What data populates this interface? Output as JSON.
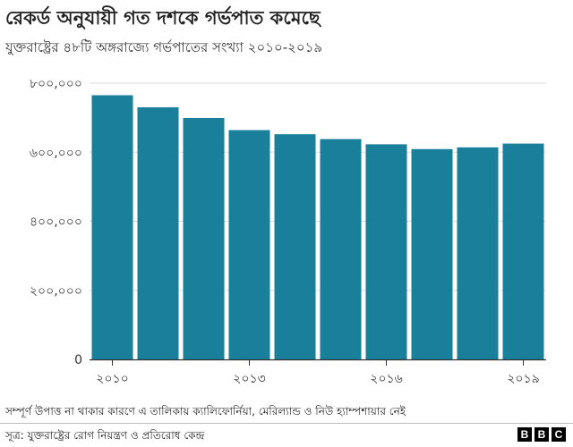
{
  "title": "রেকর্ড অনুযায়ী গত দশকে গর্ভপাত কমেছে",
  "subtitle": "যুক্তরাষ্ট্রের ৪৮টি অঙ্গরাজ্যে গর্ভপাতের সংখ্যা ২০১০-২০১৯",
  "note": "সম্পূর্ণ উপাত্ত না থাকার কারণে এ তালিকায় ক্যালিফোর্নিয়া, মেরিল্যান্ড ও নিউ হ্যাম্পশায়ার নেই",
  "source": "সূত্র: যুক্তরাষ্ট্রের রোগ নিয়ন্ত্রণ ও প্রতিরোধ কেন্দ্র",
  "logo": [
    "B",
    "B",
    "C"
  ],
  "colors": {
    "bar": "#1a7f9a",
    "grid": "#dddddd",
    "axis": "#333333"
  },
  "chart_data": {
    "type": "bar",
    "categories": [
      "2010",
      "2011",
      "2012",
      "2013",
      "2014",
      "2015",
      "2016",
      "2017",
      "2018",
      "2019"
    ],
    "values": [
      765000,
      730000,
      699000,
      664000,
      652000,
      638000,
      623000,
      609000,
      614000,
      625000
    ],
    "x_tick_labels": [
      {
        "category": "2010",
        "label": "২০১০"
      },
      {
        "category": "2013",
        "label": "২০১৩"
      },
      {
        "category": "2016",
        "label": "২০১৬"
      },
      {
        "category": "2019",
        "label": "২০১৯"
      }
    ],
    "y_ticks": [
      0,
      200000,
      400000,
      600000,
      800000
    ],
    "y_tick_labels": [
      "0",
      "২০০,০০০",
      "৪০০,০০০",
      "৬০০,০০০",
      "৮০০,০০০"
    ],
    "ylim": [
      0,
      800000
    ],
    "grid": true
  }
}
